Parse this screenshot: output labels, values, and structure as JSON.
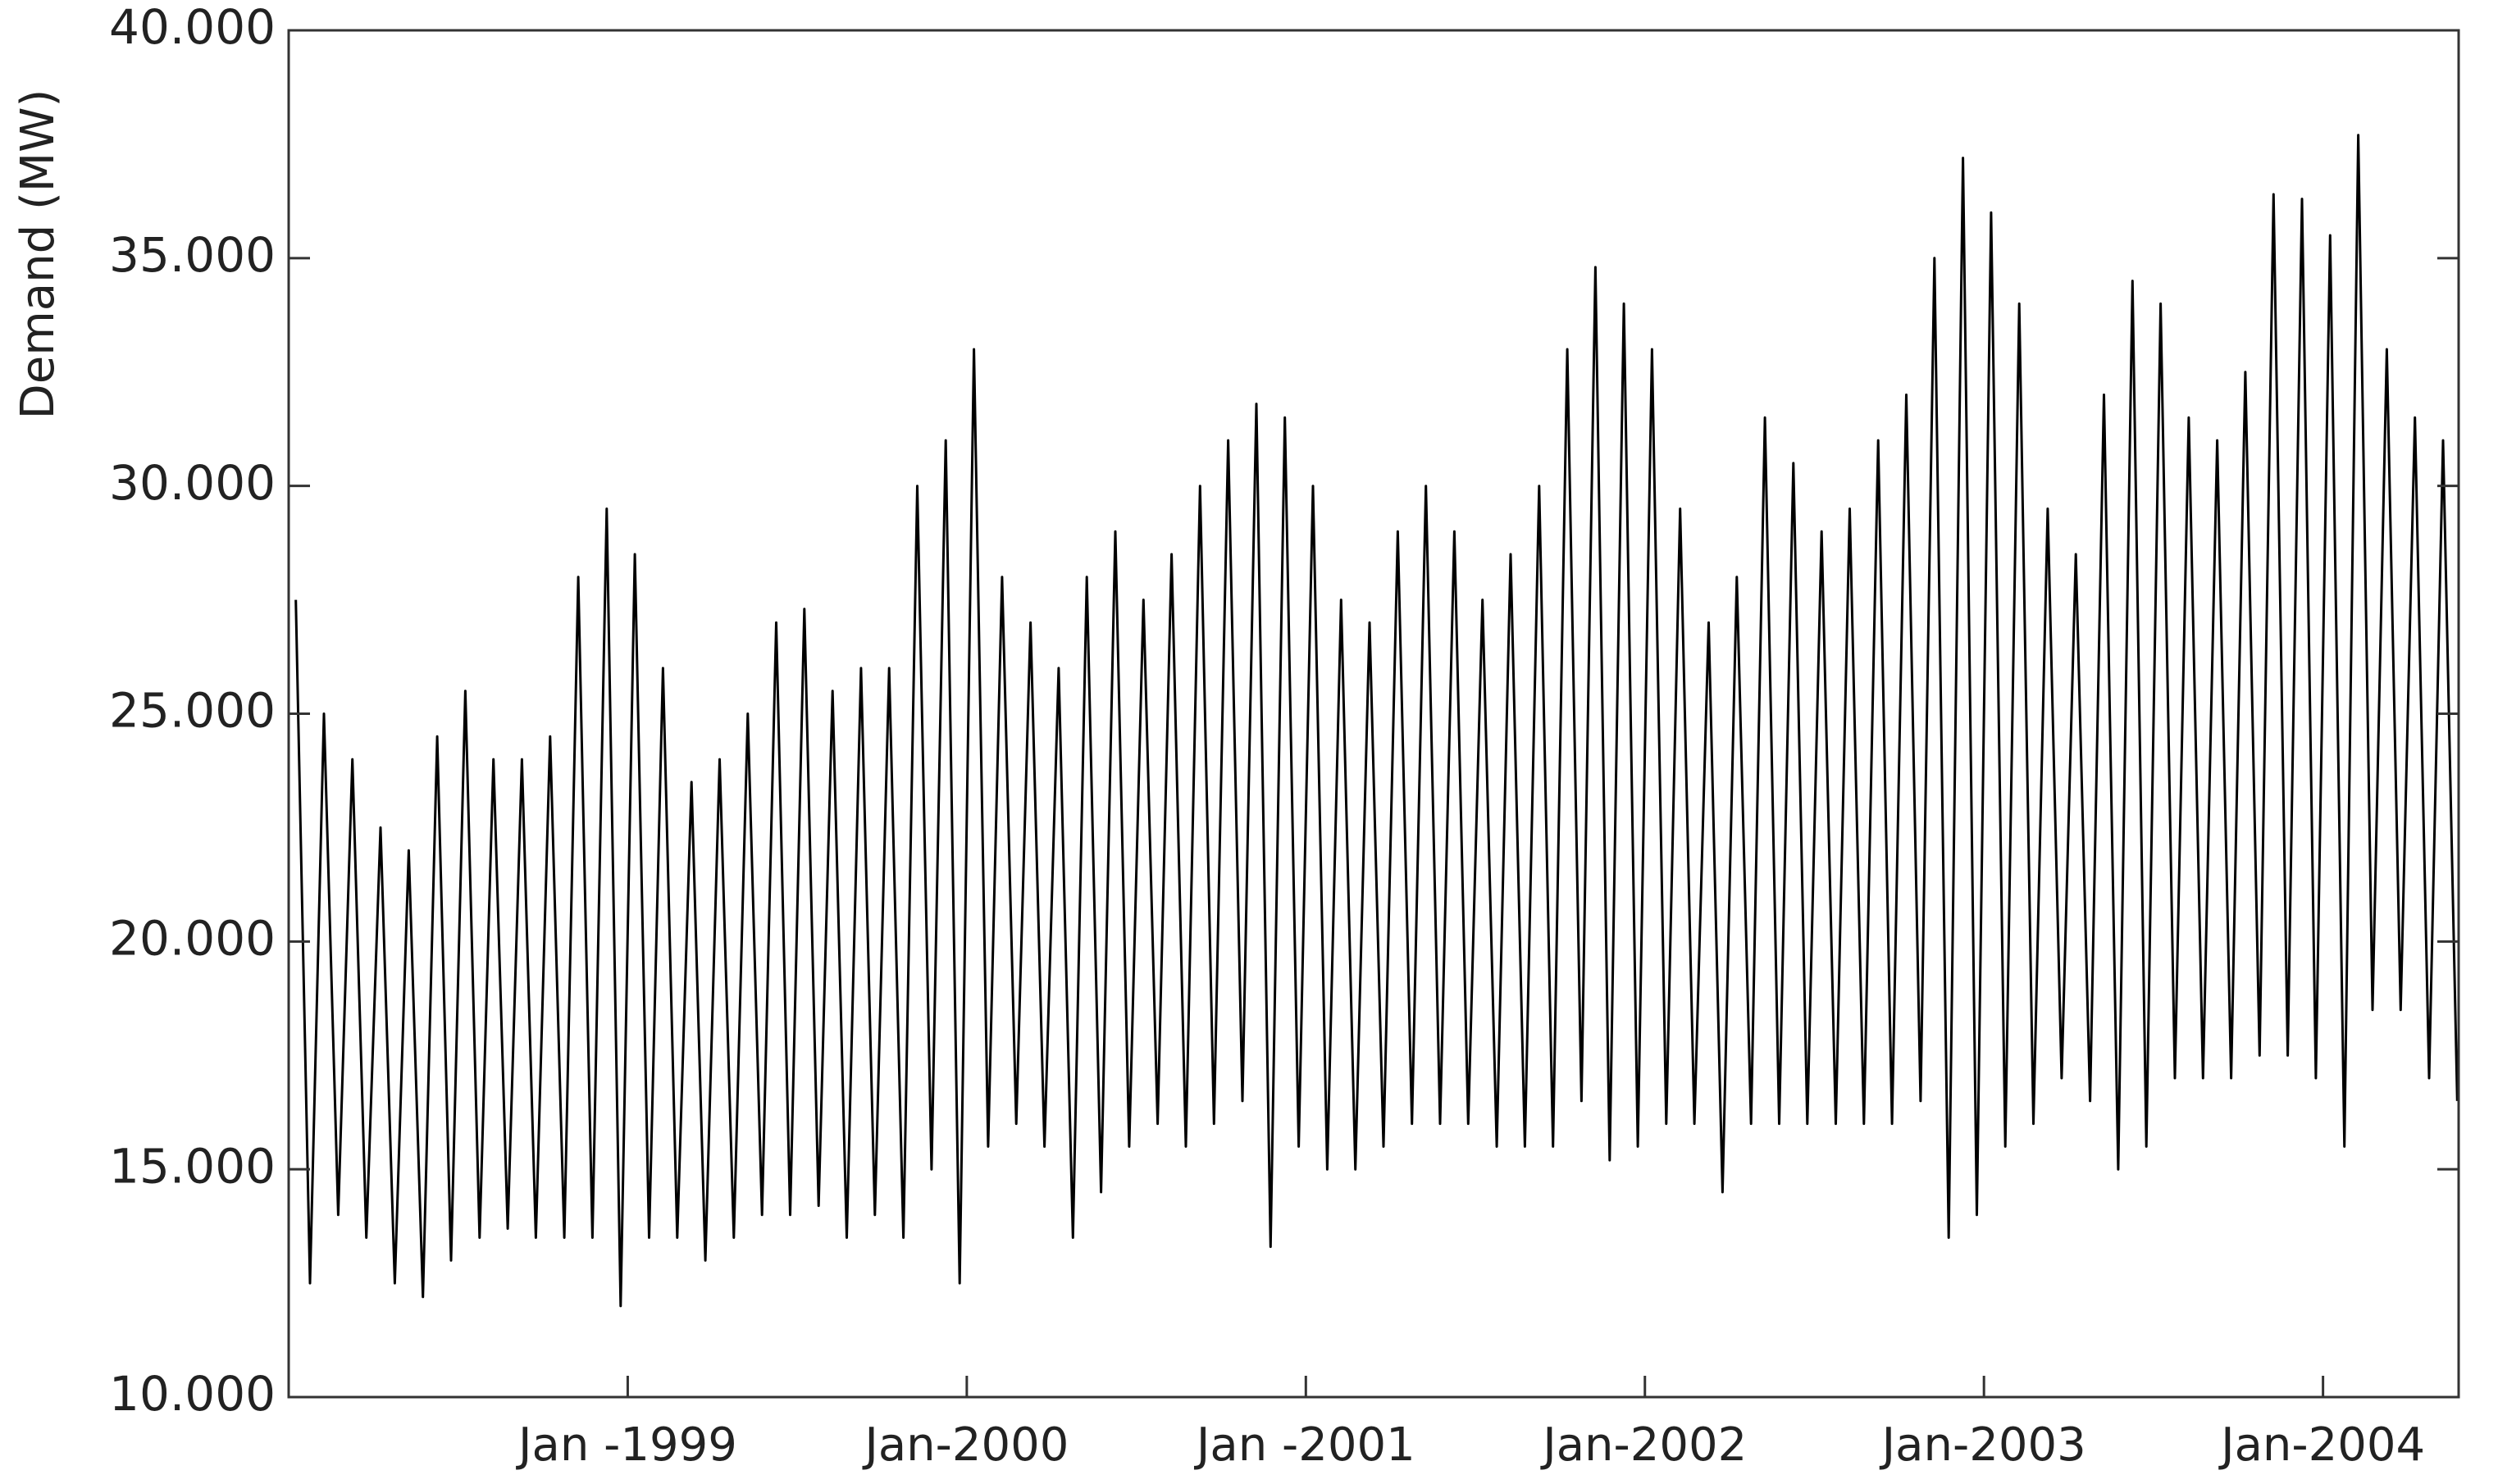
{
  "chart_data": {
    "type": "line",
    "y_label": "Demand (MW)",
    "color": "#000000",
    "xlim": [
      1998.0,
      2004.4
    ],
    "xticks": [
      {
        "value": 1999,
        "label": "Jan -1999"
      },
      {
        "value": 2000,
        "label": "Jan-2000"
      },
      {
        "value": 2001,
        "label": "Jan -2001"
      },
      {
        "value": 2002,
        "label": "Jan-2002"
      },
      {
        "value": 2003,
        "label": "Jan-2003"
      },
      {
        "value": 2004,
        "label": "Jan-2004"
      }
    ],
    "ylim": [
      10000,
      40000
    ],
    "yticks": [
      {
        "value": 10000,
        "label": "10.000"
      },
      {
        "value": 15000,
        "label": "15.000"
      },
      {
        "value": 20000,
        "label": "20.000"
      },
      {
        "value": 25000,
        "label": "25.000"
      },
      {
        "value": 30000,
        "label": "30.000"
      },
      {
        "value": 35000,
        "label": "35.000"
      },
      {
        "value": 40000,
        "label": "40.000"
      }
    ],
    "x": [
      1998.021,
      1998.063,
      1998.104,
      1998.146,
      1998.188,
      1998.229,
      1998.271,
      1998.313,
      1998.354,
      1998.396,
      1998.438,
      1998.479,
      1998.521,
      1998.563,
      1998.604,
      1998.646,
      1998.688,
      1998.729,
      1998.771,
      1998.813,
      1998.854,
      1998.896,
      1998.938,
      1998.979,
      1999.021,
      1999.063,
      1999.104,
      1999.146,
      1999.188,
      1999.229,
      1999.271,
      1999.313,
      1999.354,
      1999.396,
      1999.438,
      1999.479,
      1999.521,
      1999.563,
      1999.604,
      1999.646,
      1999.688,
      1999.729,
      1999.771,
      1999.813,
      1999.854,
      1999.896,
      1999.938,
      1999.979,
      2000.021,
      2000.063,
      2000.104,
      2000.146,
      2000.188,
      2000.229,
      2000.271,
      2000.313,
      2000.354,
      2000.396,
      2000.438,
      2000.479,
      2000.521,
      2000.563,
      2000.604,
      2000.646,
      2000.688,
      2000.729,
      2000.771,
      2000.813,
      2000.854,
      2000.896,
      2000.938,
      2000.979,
      2001.021,
      2001.063,
      2001.104,
      2001.146,
      2001.188,
      2001.229,
      2001.271,
      2001.313,
      2001.354,
      2001.396,
      2001.438,
      2001.479,
      2001.521,
      2001.563,
      2001.604,
      2001.646,
      2001.688,
      2001.729,
      2001.771,
      2001.813,
      2001.854,
      2001.896,
      2001.938,
      2001.979,
      2002.021,
      2002.063,
      2002.104,
      2002.146,
      2002.188,
      2002.229,
      2002.271,
      2002.313,
      2002.354,
      2002.396,
      2002.438,
      2002.479,
      2002.521,
      2002.563,
      2002.604,
      2002.646,
      2002.688,
      2002.729,
      2002.771,
      2002.813,
      2002.854,
      2002.896,
      2002.938,
      2002.979,
      2003.021,
      2003.063,
      2003.104,
      2003.146,
      2003.188,
      2003.229,
      2003.271,
      2003.313,
      2003.354,
      2003.396,
      2003.438,
      2003.479,
      2003.521,
      2003.563,
      2003.604,
      2003.646,
      2003.688,
      2003.729,
      2003.771,
      2003.813,
      2003.854,
      2003.896,
      2003.938,
      2003.979,
      2004.021,
      2004.063,
      2004.104,
      2004.146,
      2004.188,
      2004.229,
      2004.271,
      2004.313,
      2004.354,
      2004.396
    ],
    "values": [
      27500,
      12500,
      25000,
      14000,
      24000,
      13500,
      22500,
      12500,
      22000,
      12200,
      24500,
      13000,
      25500,
      13500,
      24000,
      13700,
      24000,
      13500,
      24500,
      13500,
      28000,
      13500,
      29500,
      12000,
      28500,
      13500,
      26000,
      13500,
      23500,
      13000,
      24000,
      13500,
      25000,
      14000,
      27000,
      14000,
      27300,
      14200,
      25500,
      13500,
      26000,
      14000,
      26000,
      13500,
      30000,
      15000,
      31000,
      12500,
      33000,
      15500,
      28000,
      16000,
      27000,
      15500,
      26000,
      13500,
      28000,
      14500,
      29000,
      15500,
      27500,
      16000,
      28500,
      15500,
      30000,
      16000,
      31000,
      16500,
      31800,
      13300,
      31500,
      15500,
      30000,
      15000,
      27500,
      15000,
      27000,
      15500,
      29000,
      16000,
      30000,
      16000,
      29000,
      16000,
      27500,
      15500,
      28500,
      15500,
      30000,
      15500,
      33000,
      16500,
      34800,
      15200,
      34000,
      15500,
      33000,
      16000,
      29500,
      16000,
      27000,
      14500,
      28000,
      16000,
      31500,
      16000,
      30500,
      16000,
      29000,
      16000,
      29500,
      16000,
      31000,
      16000,
      32000,
      16500,
      35000,
      13500,
      37200,
      14000,
      36000,
      15500,
      34000,
      16000,
      29500,
      17000,
      28500,
      16500,
      32000,
      15000,
      34500,
      15500,
      34000,
      17000,
      31500,
      17000,
      31000,
      17000,
      32500,
      17500,
      36400,
      17500,
      36300,
      17000,
      35500,
      15500,
      37700,
      18500,
      33000,
      18500,
      31500,
      17000,
      31000,
      16500
    ]
  }
}
